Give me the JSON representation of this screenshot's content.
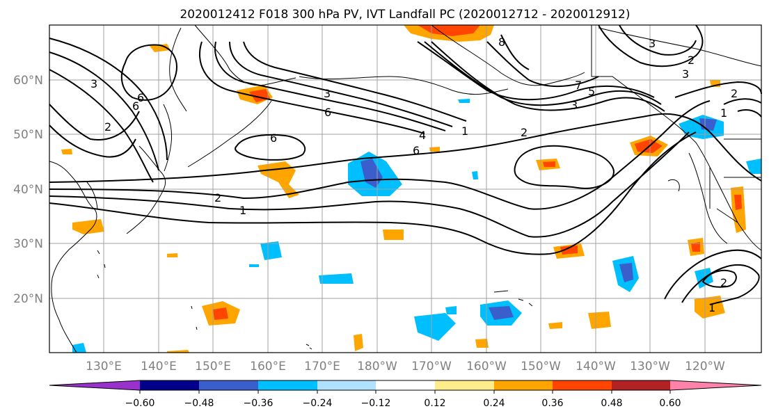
{
  "title": "2020012412 F018 300 hPa PV, IVT Landfall PC (2020012712 - 2020012912)",
  "lon_ticks": [
    "130°E",
    "140°E",
    "150°E",
    "160°E",
    "170°E",
    "180°W",
    "170°W",
    "160°W",
    "150°W",
    "140°W",
    "130°W",
    "120°W"
  ],
  "lat_ticks": [
    "60°N",
    "50°N",
    "40°N",
    "30°N",
    "20°N"
  ],
  "colorbar": {
    "ticks": [
      "−0.60",
      "−0.48",
      "−0.36",
      "−0.24",
      "−0.12",
      "0.12",
      "0.24",
      "0.36",
      "0.48",
      "0.60"
    ],
    "colors": [
      "#9932cc",
      "#00008b",
      "#3a5fcd",
      "#00bfff",
      "#b0e2ff",
      "#ffffff",
      "#ffec8b",
      "#ffa500",
      "#ff4500",
      "#b22222",
      "#ff82ab"
    ]
  },
  "contour_labels": [
    "6",
    "3",
    "6",
    "6",
    "2",
    "1",
    "1",
    "2",
    "3",
    "6",
    "2",
    "4",
    "6",
    "1",
    "2",
    "3",
    "5",
    "7",
    "8",
    "3",
    "2",
    "1",
    "2",
    "3"
  ]
}
